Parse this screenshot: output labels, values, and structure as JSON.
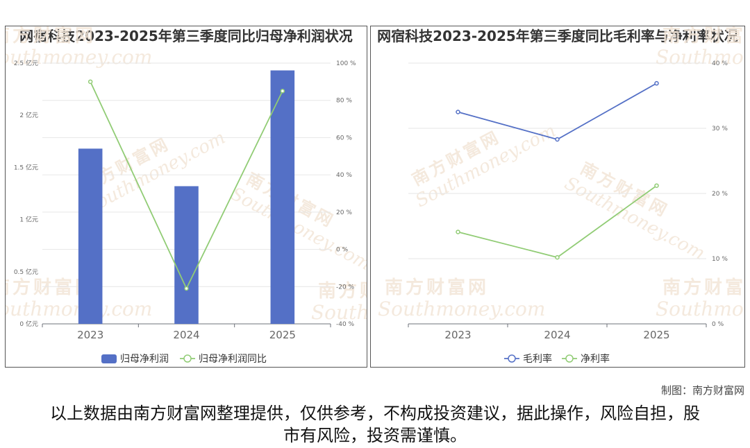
{
  "watermark": {
    "cn": "南方财富网",
    "en": "outhmoney.com",
    "color": "#f3e6d8"
  },
  "credit": "制图：南方财富网",
  "disclaimer": "以上数据由南方财富网整理提供，仅供参考，不构成投资建议，据此操作，风险自担，股市有风险，投资需谨慎。",
  "chart_data": [
    {
      "type": "bar+line",
      "title": "网宿科技2023-2025年第三季度同比归母净利润状况",
      "categories": [
        "2023",
        "2024",
        "2025"
      ],
      "left_axis": {
        "ticks": [
          "0 亿元",
          "0.5 亿元",
          "1 亿元",
          "1.5 亿元",
          "2 亿元",
          "2.5 亿元"
        ],
        "ylim": [
          0,
          2.5
        ]
      },
      "right_axis": {
        "ticks": [
          "-40 %",
          "-20 %",
          "0 %",
          "20 %",
          "40 %",
          "60 %",
          "80 %",
          "100 %"
        ],
        "ylim": [
          -40,
          100
        ]
      },
      "series": [
        {
          "name": "归母净利润",
          "kind": "bar",
          "axis": "left",
          "values": [
            1.68,
            1.32,
            2.43
          ],
          "color": "#5470c6"
        },
        {
          "name": "归母净利润同比",
          "kind": "line",
          "axis": "right",
          "values": [
            90,
            -21,
            85
          ],
          "color": "#91cc75"
        }
      ],
      "legend": "bottom-center",
      "grid": true
    },
    {
      "type": "line",
      "title": "网宿科技2023-2025年第三季度同比毛利率与净利率状况",
      "categories": [
        "2023",
        "2024",
        "2025"
      ],
      "right_axis": {
        "ticks": [
          "0 %",
          "10 %",
          "20 %",
          "30 %",
          "40 %"
        ],
        "ylim": [
          0,
          40
        ]
      },
      "series": [
        {
          "name": "毛利率",
          "kind": "line",
          "axis": "right",
          "values": [
            32.5,
            28.3,
            36.9
          ],
          "color": "#5470c6"
        },
        {
          "name": "净利率",
          "kind": "line",
          "axis": "right",
          "values": [
            14.1,
            10.2,
            21.2
          ],
          "color": "#91cc75"
        }
      ],
      "legend": "bottom-center",
      "grid": true
    }
  ]
}
